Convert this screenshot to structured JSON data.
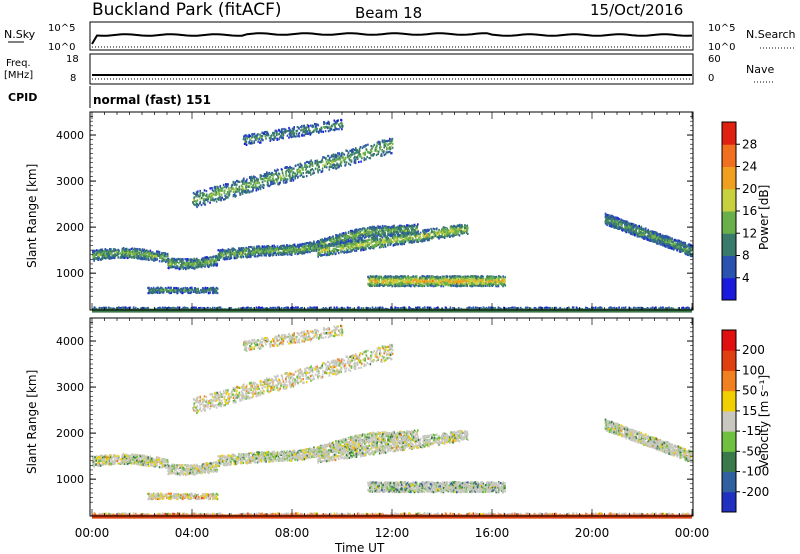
{
  "header": {
    "station": "Buckland Park (fitACF)",
    "beam": "Beam 18",
    "date": "15/Oct/2016"
  },
  "top_panels": {
    "nsky_label": "N.Sky",
    "nsearch_label": "N.Search",
    "nsky_ticks": [
      "10^5",
      "10^0"
    ],
    "nsearch_ticks": [
      "10^5",
      "10^0"
    ],
    "freq_label": "Freq.",
    "freq_unit": "[MHz]",
    "freq_ticks": [
      "18",
      "8"
    ],
    "nave_label": "Nave",
    "nave_ticks": [
      "60",
      "0"
    ],
    "cpid_label": "CPID",
    "cpid_value": "normal (fast) 151"
  },
  "chart_data": [
    {
      "type": "heatmap",
      "name": "power",
      "ylabel": "Slant Range [km]",
      "xlabel": "Time UT",
      "yticks": [
        "4000",
        "3000",
        "2000",
        "1000"
      ],
      "ylim": [
        200,
        4500
      ],
      "xlim": [
        0,
        24
      ],
      "colorbar": {
        "label": "Power [dB]",
        "ticks": [
          "28",
          "24",
          "20",
          "16",
          "12",
          "8",
          "4"
        ],
        "colors": [
          "#1a1adf",
          "#2a52b0",
          "#3a7a6a",
          "#6ab04a",
          "#c8d040",
          "#f0a020",
          "#f07020",
          "#e02010"
        ]
      }
    },
    {
      "type": "heatmap",
      "name": "velocity",
      "ylabel": "Slant Range [km]",
      "xlabel": "Time UT",
      "yticks": [
        "4000",
        "3000",
        "2000",
        "1000"
      ],
      "ylim": [
        200,
        4500
      ],
      "xlim": [
        0,
        24
      ],
      "colorbar": {
        "label": "Velocity [m s⁻¹]",
        "ticks": [
          "200",
          "100",
          "50",
          "15",
          "-15",
          "-50",
          "-100",
          "-200"
        ],
        "colors": [
          "#2030c0",
          "#3060a0",
          "#3a7a4a",
          "#70c040",
          "#c8c8c0",
          "#f0d000",
          "#f08020",
          "#e04010",
          "#e01010"
        ]
      }
    }
  ],
  "x_axis": {
    "ticks": [
      "00:00",
      "04:00",
      "08:00",
      "12:00",
      "16:00",
      "20:00",
      "00:00"
    ],
    "label": "Time UT"
  }
}
